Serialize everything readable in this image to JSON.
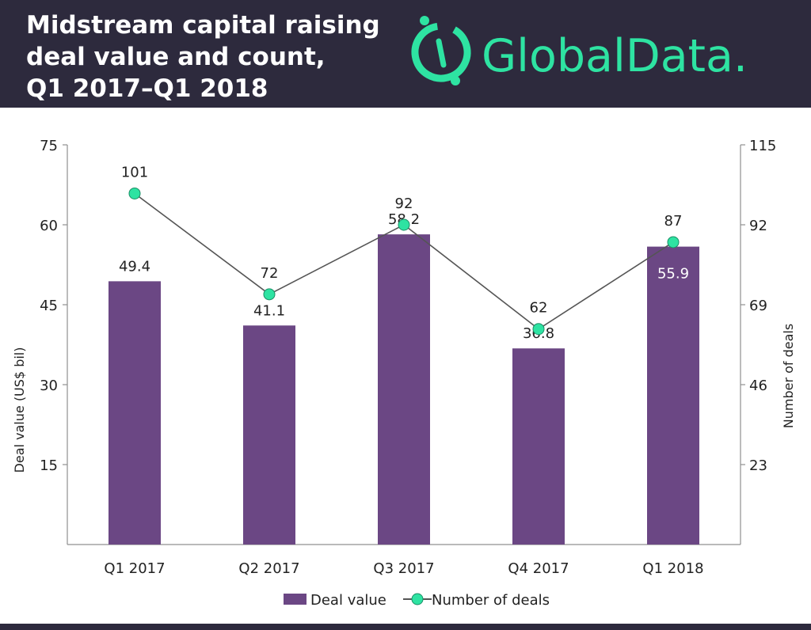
{
  "header": {
    "title_lines": [
      "Midstream capital raising",
      "deal value and count,",
      "Q1 2017–Q1 2018"
    ],
    "logo_text": "GlobalData."
  },
  "colors": {
    "header_bg": "#2d2a3d",
    "bar": "#6b4784",
    "line": "#555555",
    "marker": "#2ee3a2",
    "logo": "#2ee3a2"
  },
  "chart_data": {
    "type": "bar",
    "categories": [
      "Q1 2017",
      "Q2 2017",
      "Q3 2017",
      "Q4 2017",
      "Q1 2018"
    ],
    "series": [
      {
        "name": "Deal value",
        "type": "bar",
        "axis": "left",
        "values": [
          49.4,
          41.1,
          58.2,
          36.8,
          55.9
        ]
      },
      {
        "name": "Number of deals",
        "type": "line",
        "axis": "right",
        "values": [
          101,
          72,
          92,
          62,
          87
        ]
      }
    ],
    "ylabel": "Deal value (US$ bil)",
    "y2label": "Number of deals",
    "ylim": [
      0,
      75
    ],
    "y2lim": [
      0,
      115
    ],
    "yticks": [
      "15",
      "30",
      "45",
      "60",
      "75"
    ],
    "y2ticks": [
      "23",
      "46",
      "69",
      "92",
      "115"
    ],
    "legend": {
      "position": "bottom",
      "entries": [
        "Deal value",
        "Number of deals"
      ]
    },
    "grid": false
  }
}
